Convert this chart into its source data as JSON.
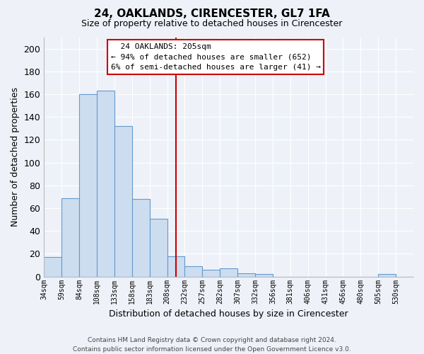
{
  "title": "24, OAKLANDS, CIRENCESTER, GL7 1FA",
  "subtitle": "Size of property relative to detached houses in Cirencester",
  "xlabel": "Distribution of detached houses by size in Cirencester",
  "ylabel": "Number of detached properties",
  "bin_labels": [
    "34sqm",
    "59sqm",
    "84sqm",
    "108sqm",
    "133sqm",
    "158sqm",
    "183sqm",
    "208sqm",
    "232sqm",
    "257sqm",
    "282sqm",
    "307sqm",
    "332sqm",
    "356sqm",
    "381sqm",
    "406sqm",
    "431sqm",
    "456sqm",
    "480sqm",
    "505sqm",
    "530sqm"
  ],
  "bar_values": [
    17,
    69,
    160,
    163,
    132,
    68,
    51,
    18,
    9,
    6,
    7,
    3,
    2,
    0,
    0,
    0,
    0,
    0,
    0,
    2,
    0
  ],
  "bar_color": "#ccddf0",
  "bar_edge_color": "#6699cc",
  "property_line_x": 7.5,
  "property_line_color": "#cc0000",
  "ylim": [
    0,
    210
  ],
  "yticks": [
    0,
    20,
    40,
    60,
    80,
    100,
    120,
    140,
    160,
    180,
    200
  ],
  "annotation_title": "24 OAKLANDS: 205sqm",
  "annotation_line1": "← 94% of detached houses are smaller (652)",
  "annotation_line2": "6% of semi-detached houses are larger (41) →",
  "annotation_box_color": "#ffffff",
  "annotation_box_edge": "#cc0000",
  "footer_line1": "Contains HM Land Registry data © Crown copyright and database right 2024.",
  "footer_line2": "Contains public sector information licensed under the Open Government Licence v3.0.",
  "background_color": "#eef2f8"
}
